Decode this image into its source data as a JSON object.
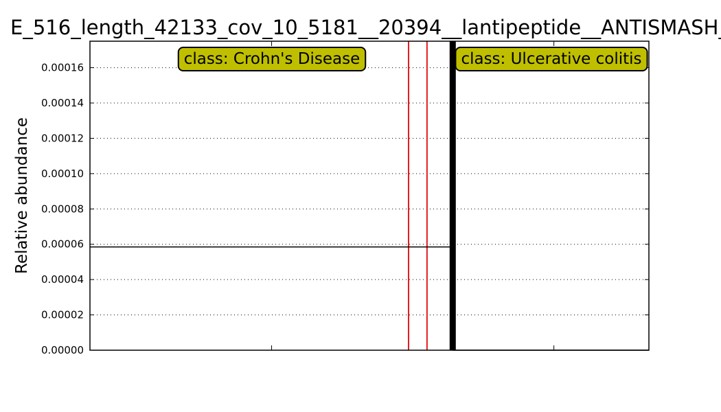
{
  "chart_data": {
    "type": "line",
    "title": "E_516_length_42133_cov_10_5181__20394__lantipeptide__ANTISMASH_",
    "ylabel": "Relative abundance",
    "xlabel": "",
    "ylim": [
      0,
      0.000175
    ],
    "grid": "horizontal dotted",
    "y_tick_labels": [
      "0.00000",
      "0.00002",
      "0.00004",
      "0.00006",
      "0.00008",
      "0.00010",
      "0.00012",
      "0.00014",
      "0.00016"
    ],
    "y_ticks": [
      0,
      2e-05,
      4e-05,
      6e-05,
      8e-05,
      0.0001,
      0.00012,
      0.00014,
      0.00016
    ],
    "x_range": [
      0,
      100
    ],
    "x_ticks": [
      32.5,
      83
    ],
    "groups": [
      {
        "label": "class: Crohn's Disease",
        "x_start": 0,
        "x_end": 64.9,
        "abundance_line": 5.85e-05
      },
      {
        "label": "class: Ulcerative colitis",
        "x_start": 64.9,
        "x_end": 100,
        "abundance_line": 0
      }
    ],
    "red_lines_x": [
      57,
      60.3
    ],
    "separator_x": 64.9,
    "colors": {
      "label_box": "#bfbf00",
      "red_line": "#e31a1c",
      "separator": "#000000",
      "abundance": "#000000",
      "grid": "#000000"
    }
  }
}
